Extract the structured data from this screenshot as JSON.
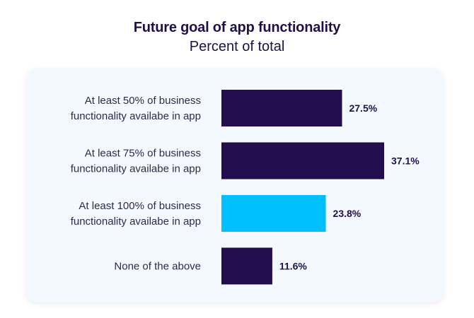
{
  "chart_data": {
    "type": "bar",
    "orientation": "horizontal",
    "title": "Future goal of app functionality",
    "subtitle": "Percent of total",
    "categories": [
      [
        "At least 50% of business",
        "functionality availabe in app"
      ],
      [
        "At least 75% of business",
        "functionality availabe in app"
      ],
      [
        "At least 100% of business",
        "functionality availabe in app"
      ],
      [
        "None of the above"
      ]
    ],
    "values": [
      27.5,
      37.1,
      23.8,
      11.6
    ],
    "value_labels": [
      "27.5%",
      "37.1%",
      "23.8%",
      "11.6%"
    ],
    "colors": [
      "#220d4f",
      "#220d4f",
      "#00bfff",
      "#220d4f"
    ],
    "xlim": [
      0,
      37.1
    ],
    "grid": false,
    "legend": "none"
  }
}
